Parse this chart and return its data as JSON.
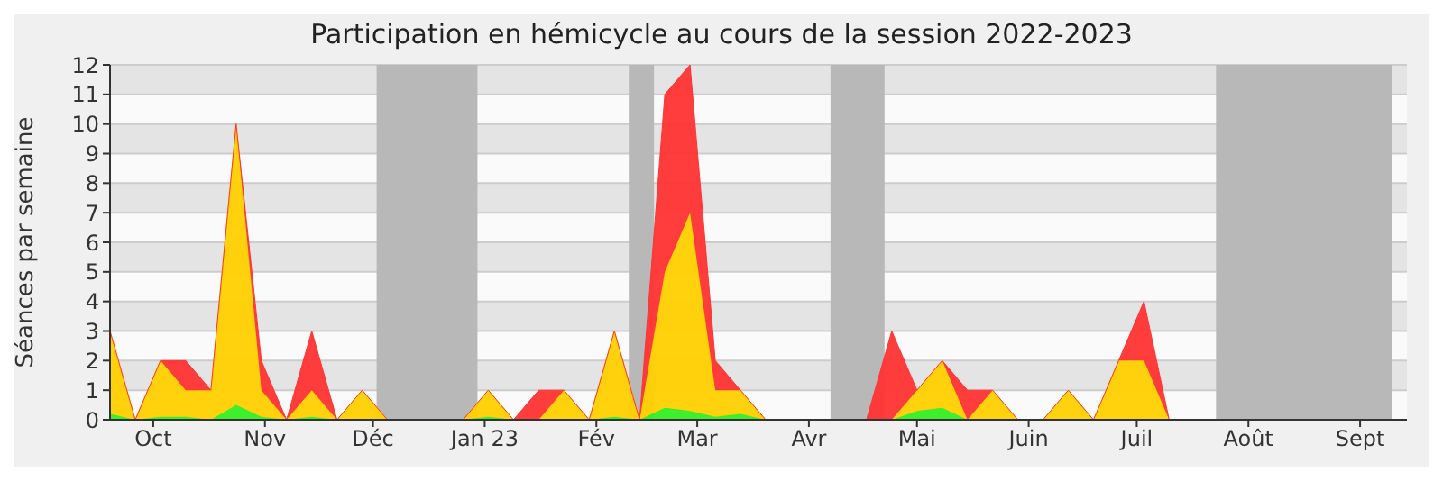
{
  "chart_data": {
    "type": "area",
    "stacked": true,
    "title": "Participation en hémicycle au cours de la session 2022-2023",
    "ylabel": "Séances par semaine",
    "x": [
      "2022-09-19",
      "2022-09-26",
      "2022-10-03",
      "2022-10-10",
      "2022-10-17",
      "2022-10-24",
      "2022-10-31",
      "2022-11-07",
      "2022-11-14",
      "2022-11-21",
      "2022-11-28",
      "2022-12-05",
      "2022-12-12",
      "2022-12-19",
      "2022-12-26",
      "2023-01-02",
      "2023-01-09",
      "2023-01-16",
      "2023-01-23",
      "2023-01-30",
      "2023-02-06",
      "2023-02-13",
      "2023-02-20",
      "2023-02-27",
      "2023-03-06",
      "2023-03-13",
      "2023-03-20",
      "2023-03-27",
      "2023-04-03",
      "2023-04-10",
      "2023-04-17",
      "2023-04-24",
      "2023-05-01",
      "2023-05-08",
      "2023-05-15",
      "2023-05-22",
      "2023-05-29",
      "2023-06-05",
      "2023-06-12",
      "2023-06-19",
      "2023-06-26",
      "2023-07-03",
      "2023-07-10",
      "2023-07-17"
    ],
    "series": [
      {
        "color": "#33ee22",
        "values": [
          0.2,
          0,
          0.1,
          0.1,
          0,
          0.5,
          0.1,
          0,
          0.1,
          0,
          0,
          0,
          0,
          0,
          0,
          0.1,
          0,
          0,
          0,
          0,
          0.1,
          0,
          0.4,
          0.3,
          0.1,
          0.2,
          0,
          0,
          0,
          0,
          0,
          0,
          0.3,
          0.4,
          0,
          0,
          0,
          0,
          0,
          0,
          0,
          0,
          0,
          0
        ]
      },
      {
        "color": "#ffd000",
        "values": [
          2.8,
          0,
          1.9,
          0.9,
          1,
          9.5,
          0.9,
          0,
          0.9,
          0,
          1,
          0,
          0,
          0,
          0,
          0.9,
          0,
          0,
          1,
          0,
          2.9,
          0,
          4.6,
          6.7,
          0.9,
          0.8,
          0,
          0,
          0,
          0,
          0,
          0,
          0.7,
          1.6,
          0,
          1,
          0,
          0,
          1,
          0,
          2,
          2,
          0,
          0
        ]
      },
      {
        "color": "#ff3333",
        "values": [
          0,
          0,
          0,
          1,
          0,
          0,
          1,
          0,
          2,
          0,
          0,
          0,
          0,
          0,
          0,
          0,
          0,
          1,
          0,
          0,
          0,
          0,
          6,
          5,
          1,
          0,
          0,
          0,
          0,
          0,
          0,
          3,
          0,
          0,
          1,
          0,
          0,
          0,
          0,
          0,
          0,
          2,
          0,
          0
        ]
      }
    ],
    "xlim": [
      "2022-09-19",
      "2023-09-14"
    ],
    "xticks": [
      {
        "value": "2022-10-01",
        "label": "Oct"
      },
      {
        "value": "2022-11-01",
        "label": "Nov"
      },
      {
        "value": "2022-12-01",
        "label": "Déc"
      },
      {
        "value": "2023-01-01",
        "label": "Jan 23"
      },
      {
        "value": "2023-02-01",
        "label": "Fév"
      },
      {
        "value": "2023-03-01",
        "label": "Mar"
      },
      {
        "value": "2023-04-01",
        "label": "Avr"
      },
      {
        "value": "2023-05-01",
        "label": "Mai"
      },
      {
        "value": "2023-06-01",
        "label": "Juin"
      },
      {
        "value": "2023-07-01",
        "label": "Juil"
      },
      {
        "value": "2023-08-01",
        "label": "Août"
      },
      {
        "value": "2023-09-01",
        "label": "Sept"
      }
    ],
    "ylim": [
      0,
      12
    ],
    "yticks": [
      0,
      1,
      2,
      3,
      4,
      5,
      6,
      7,
      8,
      9,
      10,
      11,
      12
    ],
    "grid": "y",
    "bands": [
      {
        "axis": "x",
        "from": "2022-12-02",
        "to": "2022-12-30",
        "color": "#b8b8b8"
      },
      {
        "axis": "x",
        "from": "2023-02-10",
        "to": "2023-02-17",
        "color": "#b8b8b8"
      },
      {
        "axis": "x",
        "from": "2023-04-07",
        "to": "2023-04-22",
        "color": "#b8b8b8"
      },
      {
        "axis": "x",
        "from": "2023-07-23",
        "to": "2023-09-10",
        "color": "#b8b8b8"
      }
    ]
  }
}
